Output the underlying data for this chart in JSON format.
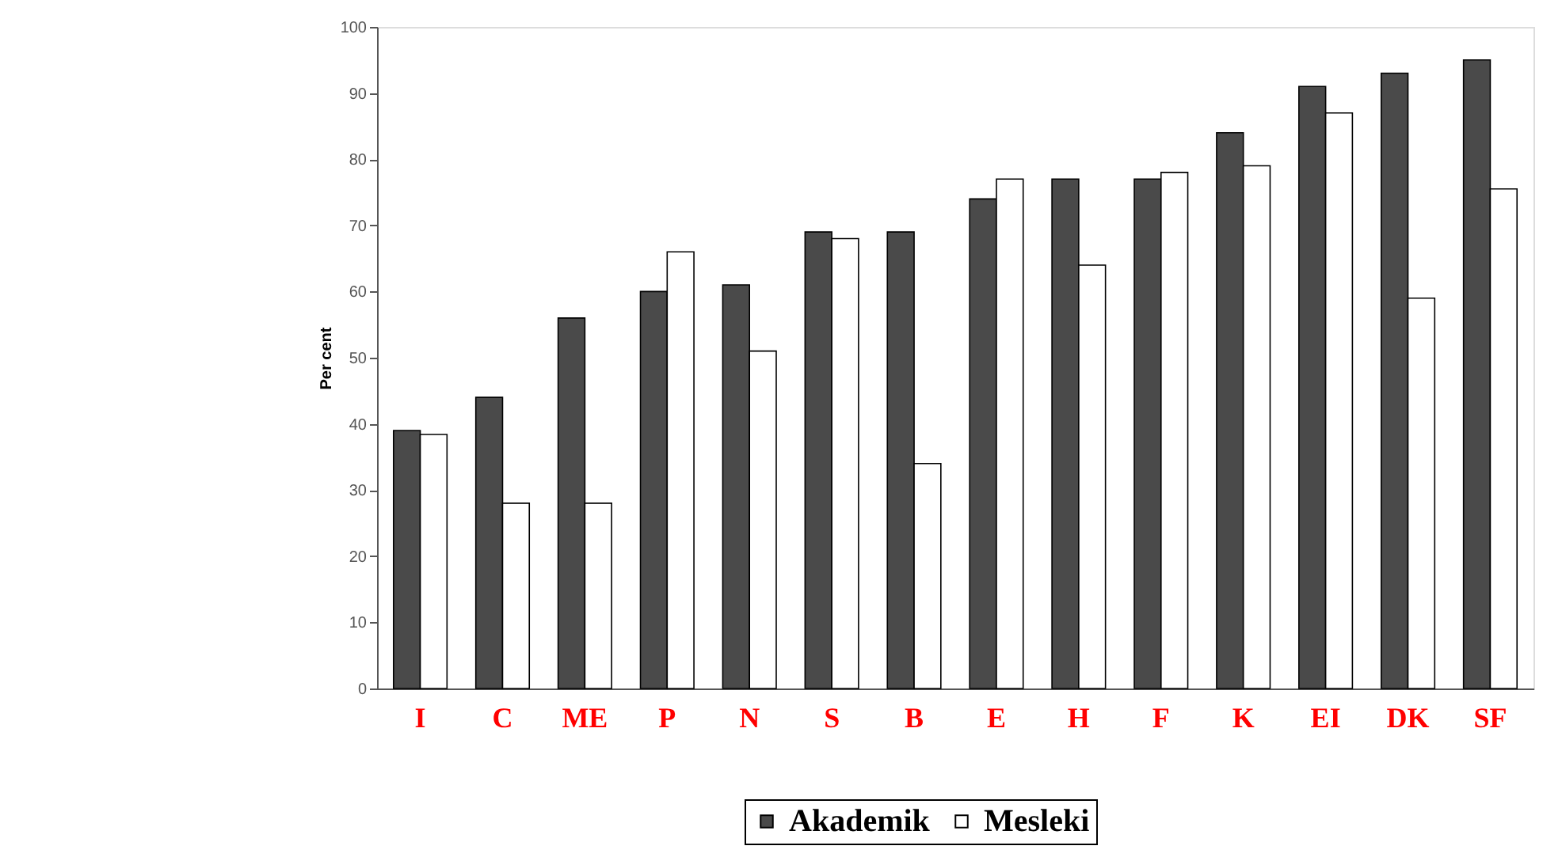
{
  "chart_data": {
    "type": "bar",
    "ylabel": "Per cent",
    "categories": [
      "I",
      "C",
      "ME",
      "P",
      "N",
      "S",
      "B",
      "E",
      "H",
      "F",
      "K",
      "EI",
      "DK",
      "SF"
    ],
    "series": [
      {
        "name": "Akademik",
        "color": "#4a4a4a",
        "values": [
          39,
          44,
          56,
          60,
          61,
          69,
          69,
          74,
          77,
          77,
          84,
          91,
          93,
          95
        ]
      },
      {
        "name": "Mesleki",
        "color": "#ffffff",
        "values": [
          38.4,
          28,
          28,
          66,
          51,
          68,
          34,
          77,
          64,
          78,
          79,
          87,
          59,
          75.5
        ]
      }
    ],
    "ylim": [
      0,
      100
    ],
    "yticks": [
      0,
      10,
      20,
      30,
      40,
      50,
      60,
      70,
      80,
      90,
      100
    ],
    "grid": false,
    "legend": "bottom"
  }
}
